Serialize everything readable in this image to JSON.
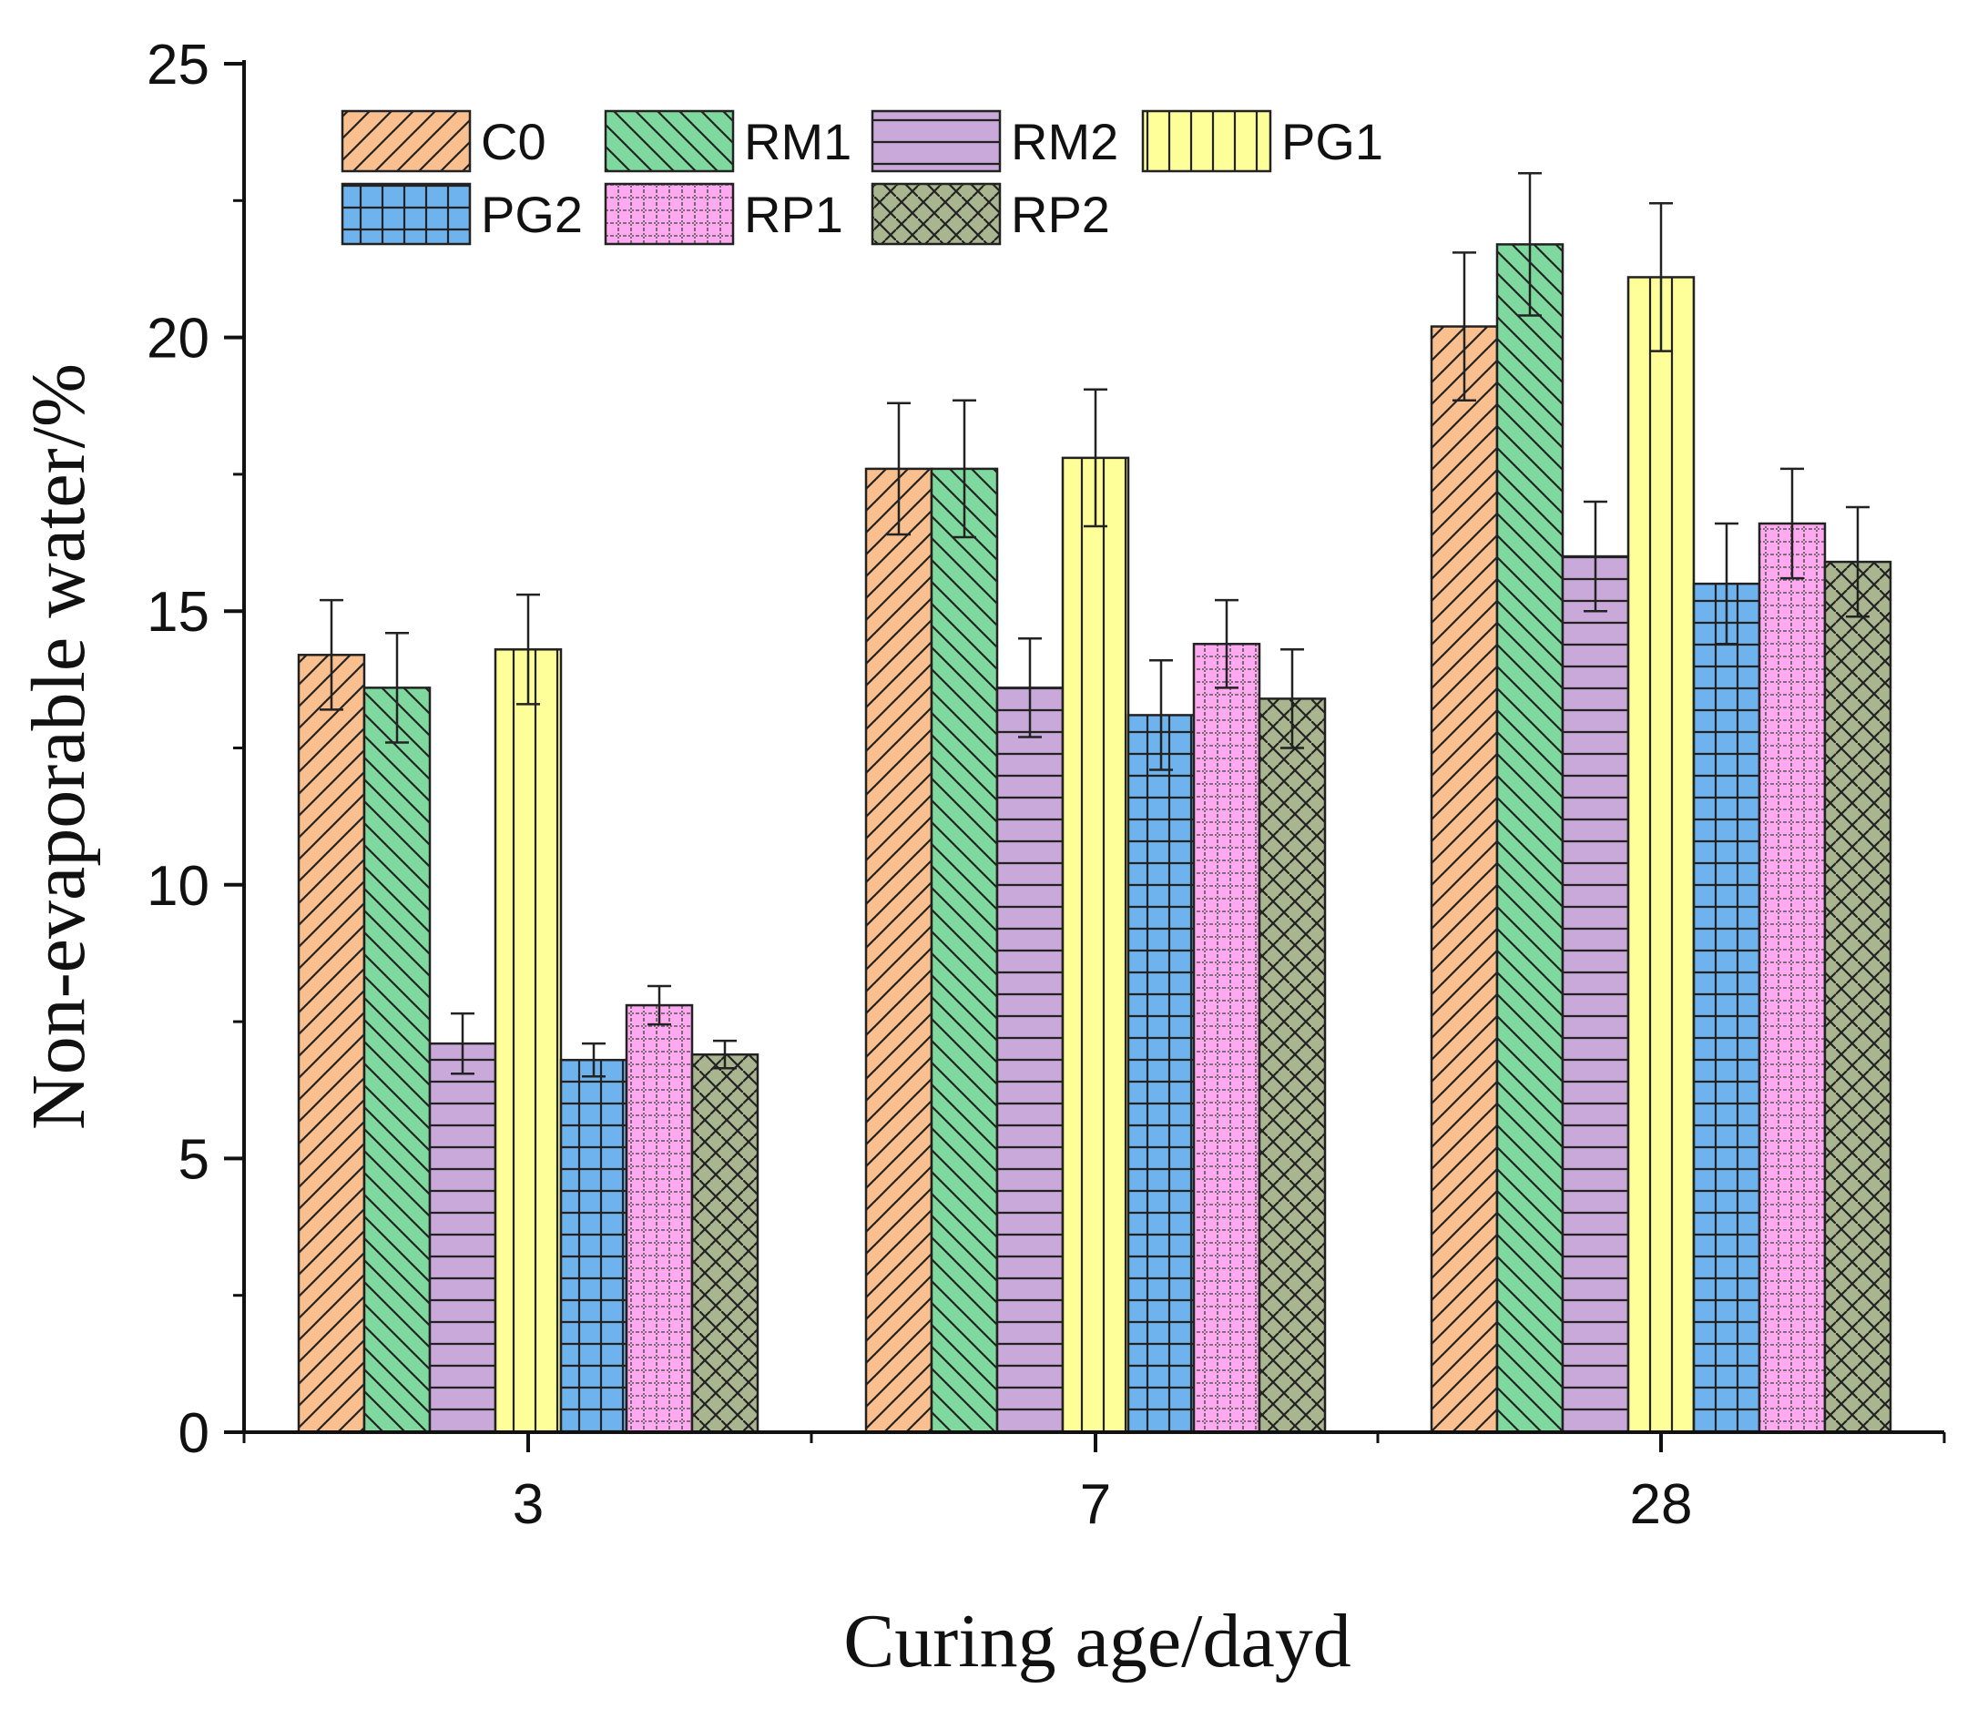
{
  "chart_data": {
    "type": "bar",
    "title": "",
    "xlabel": "Curing age/dayd",
    "ylabel": "Non-evaporable water/%",
    "categories": [
      "3",
      "7",
      "28"
    ],
    "ylim": [
      0,
      25
    ],
    "yticks": [
      "0",
      "5",
      "10",
      "15",
      "20",
      "25"
    ],
    "grid": false,
    "legend_position": "top-left",
    "series": [
      {
        "name": "C0",
        "values": [
          14.2,
          17.6,
          20.2
        ],
        "errors": [
          1.0,
          1.2,
          1.35
        ],
        "color": "#f9bf8f",
        "pattern": "diag-up"
      },
      {
        "name": "RM1",
        "values": [
          13.6,
          17.6,
          21.7
        ],
        "errors": [
          1.0,
          1.25,
          1.3
        ],
        "color": "#7fd99f",
        "pattern": "diag-down"
      },
      {
        "name": "RM2",
        "values": [
          7.1,
          13.6,
          16.0
        ],
        "errors": [
          0.55,
          0.9,
          1.0
        ],
        "color": "#c9a9d9",
        "pattern": "horizontal"
      },
      {
        "name": "PG1",
        "values": [
          14.3,
          17.8,
          21.1
        ],
        "errors": [
          1.0,
          1.25,
          1.35
        ],
        "color": "#ffff99",
        "pattern": "vertical"
      },
      {
        "name": "PG2",
        "values": [
          6.8,
          13.1,
          15.5
        ],
        "errors": [
          0.3,
          1.0,
          1.1
        ],
        "color": "#6fb3ee",
        "pattern": "grid"
      },
      {
        "name": "RP1",
        "values": [
          7.8,
          14.4,
          16.6
        ],
        "errors": [
          0.35,
          0.8,
          1.0
        ],
        "color": "#ffaaf0",
        "pattern": "dots"
      },
      {
        "name": "RP2",
        "values": [
          6.9,
          13.4,
          15.9
        ],
        "errors": [
          0.25,
          0.9,
          1.0
        ],
        "color": "#a9b58f",
        "pattern": "weave"
      }
    ]
  }
}
